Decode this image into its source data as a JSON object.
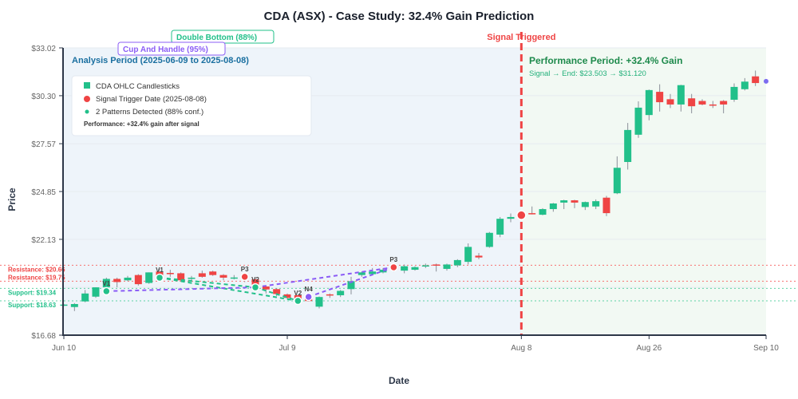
{
  "chart_data": {
    "type": "candlestick",
    "title": "CDA (ASX) - Case Study: 32.4% Gain Prediction",
    "xlabel": "Date",
    "ylabel": "Price",
    "ylim": [
      16.68,
      33.02
    ],
    "y_ticks": [
      "$16.68",
      "$22.13",
      "$24.85",
      "$27.57",
      "$30.30",
      "$33.02"
    ],
    "y_tick_values": [
      16.68,
      22.13,
      24.85,
      27.57,
      30.3,
      33.02
    ],
    "x_ticks": [
      {
        "label": "Jun 10",
        "date": "2025-06-10"
      },
      {
        "label": "Jul 9",
        "date": "2025-07-09"
      },
      {
        "label": "Aug 8",
        "date": "2025-08-08"
      },
      {
        "label": "Aug 26",
        "date": "2025-08-26"
      },
      {
        "label": "Sep 10",
        "date": "2025-09-10"
      }
    ],
    "grid": true,
    "colors": {
      "up": "#22c08a",
      "down": "#ef4444",
      "signal": "#ef4444",
      "pattern_cup": "#8b5cf6",
      "pattern_double": "#22c08a",
      "analysis_bg": "#eef4fa",
      "performance_bg": "#f2f9f3"
    },
    "candles": [
      {
        "date": "2025-06-10",
        "o": 18.38,
        "h": 18.45,
        "l": 18.33,
        "c": 18.42
      },
      {
        "date": "2025-06-11",
        "o": 18.28,
        "h": 18.5,
        "l": 18.05,
        "c": 18.45
      },
      {
        "date": "2025-06-12",
        "o": 18.6,
        "h": 19.25,
        "l": 18.55,
        "c": 19.05
      },
      {
        "date": "2025-06-13",
        "o": 18.87,
        "h": 19.4,
        "l": 18.8,
        "c": 19.4
      },
      {
        "date": "2025-06-16",
        "o": 19.4,
        "h": 19.95,
        "l": 19.35,
        "c": 19.88
      },
      {
        "date": "2025-06-17",
        "o": 19.88,
        "h": 19.95,
        "l": 19.4,
        "c": 19.7
      },
      {
        "date": "2025-06-18",
        "o": 19.8,
        "h": 20.05,
        "l": 19.75,
        "c": 19.95
      },
      {
        "date": "2025-06-19",
        "o": 20.1,
        "h": 20.15,
        "l": 19.5,
        "c": 19.58
      },
      {
        "date": "2025-06-20",
        "o": 19.65,
        "h": 20.25,
        "l": 19.6,
        "c": 20.25
      },
      {
        "date": "2025-06-23",
        "o": 20.3,
        "h": 20.45,
        "l": 19.95,
        "c": 20.1
      },
      {
        "date": "2025-06-24",
        "o": 20.22,
        "h": 20.4,
        "l": 20.0,
        "c": 20.15
      },
      {
        "date": "2025-06-25",
        "o": 20.2,
        "h": 20.25,
        "l": 19.75,
        "c": 19.8
      },
      {
        "date": "2025-06-26",
        "o": 19.9,
        "h": 20.05,
        "l": 19.8,
        "c": 19.95
      },
      {
        "date": "2025-06-27",
        "o": 20.2,
        "h": 20.35,
        "l": 19.95,
        "c": 20.0
      },
      {
        "date": "2025-06-30",
        "o": 20.3,
        "h": 20.35,
        "l": 20.05,
        "c": 20.1
      },
      {
        "date": "2025-07-01",
        "o": 20.1,
        "h": 20.15,
        "l": 19.8,
        "c": 19.95
      },
      {
        "date": "2025-07-02",
        "o": 19.92,
        "h": 20.1,
        "l": 19.85,
        "c": 19.96
      },
      {
        "date": "2025-07-03",
        "o": 20.0,
        "h": 20.05,
        "l": 19.7,
        "c": 19.9
      },
      {
        "date": "2025-07-04",
        "o": 19.86,
        "h": 19.9,
        "l": 19.5,
        "c": 19.55
      },
      {
        "date": "2025-07-07",
        "o": 19.45,
        "h": 19.5,
        "l": 19.05,
        "c": 19.28
      },
      {
        "date": "2025-07-08",
        "o": 19.3,
        "h": 19.35,
        "l": 18.9,
        "c": 19.02
      },
      {
        "date": "2025-07-09",
        "o": 19.0,
        "h": 19.05,
        "l": 18.75,
        "c": 18.8
      },
      {
        "date": "2025-07-10",
        "o": 18.95,
        "h": 19.0,
        "l": 18.65,
        "c": 18.68
      },
      {
        "date": "2025-07-11",
        "o": 18.8,
        "h": 18.85,
        "l": 18.6,
        "c": 18.62
      },
      {
        "date": "2025-07-14",
        "o": 18.3,
        "h": 18.88,
        "l": 18.2,
        "c": 18.85
      },
      {
        "date": "2025-07-15",
        "o": 19.0,
        "h": 19.05,
        "l": 18.8,
        "c": 18.95
      },
      {
        "date": "2025-07-16",
        "o": 18.95,
        "h": 19.25,
        "l": 18.85,
        "c": 19.2
      },
      {
        "date": "2025-07-17",
        "o": 19.3,
        "h": 20.0,
        "l": 19.0,
        "c": 19.75
      },
      {
        "date": "2025-07-18",
        "o": 20.1,
        "h": 20.3,
        "l": 20.0,
        "c": 20.25
      },
      {
        "date": "2025-07-21",
        "o": 20.15,
        "h": 20.5,
        "l": 20.1,
        "c": 20.3
      },
      {
        "date": "2025-07-22",
        "o": 20.25,
        "h": 20.5,
        "l": 20.2,
        "c": 20.4
      },
      {
        "date": "2025-07-23",
        "o": 20.6,
        "h": 20.7,
        "l": 20.3,
        "c": 20.5
      },
      {
        "date": "2025-07-24",
        "o": 20.35,
        "h": 20.7,
        "l": 20.2,
        "c": 20.6
      },
      {
        "date": "2025-07-25",
        "o": 20.4,
        "h": 20.6,
        "l": 20.35,
        "c": 20.55
      },
      {
        "date": "2025-07-28",
        "o": 20.6,
        "h": 20.75,
        "l": 20.5,
        "c": 20.65
      },
      {
        "date": "2025-07-29",
        "o": 20.7,
        "h": 20.75,
        "l": 20.3,
        "c": 20.65
      },
      {
        "date": "2025-07-30",
        "o": 20.45,
        "h": 20.75,
        "l": 20.35,
        "c": 20.7
      },
      {
        "date": "2025-07-31",
        "o": 20.65,
        "h": 21.0,
        "l": 20.55,
        "c": 20.95
      },
      {
        "date": "2025-08-01",
        "o": 20.85,
        "h": 21.9,
        "l": 20.7,
        "c": 21.7
      },
      {
        "date": "2025-08-04",
        "o": 21.2,
        "h": 21.35,
        "l": 21.0,
        "c": 21.1
      },
      {
        "date": "2025-08-05",
        "o": 21.7,
        "h": 22.55,
        "l": 21.65,
        "c": 22.5
      },
      {
        "date": "2025-08-06",
        "o": 22.4,
        "h": 23.4,
        "l": 22.25,
        "c": 23.3
      },
      {
        "date": "2025-08-07",
        "o": 23.3,
        "h": 23.6,
        "l": 23.1,
        "c": 23.4
      },
      {
        "date": "2025-08-08",
        "o": 23.45,
        "h": 23.55,
        "l": 23.4,
        "c": 23.503
      },
      {
        "date": "2025-08-11",
        "o": 23.62,
        "h": 24.0,
        "l": 23.55,
        "c": 23.58
      },
      {
        "date": "2025-08-12",
        "o": 23.53,
        "h": 23.9,
        "l": 23.5,
        "c": 23.85
      },
      {
        "date": "2025-08-13",
        "o": 23.85,
        "h": 24.2,
        "l": 23.7,
        "c": 24.17
      },
      {
        "date": "2025-08-14",
        "o": 24.22,
        "h": 24.38,
        "l": 23.85,
        "c": 24.35
      },
      {
        "date": "2025-08-15",
        "o": 24.35,
        "h": 24.38,
        "l": 23.9,
        "c": 24.22
      },
      {
        "date": "2025-08-18",
        "o": 23.97,
        "h": 24.28,
        "l": 23.8,
        "c": 24.25
      },
      {
        "date": "2025-08-19",
        "o": 24.0,
        "h": 24.4,
        "l": 23.85,
        "c": 24.3
      },
      {
        "date": "2025-08-20",
        "o": 24.5,
        "h": 24.6,
        "l": 23.45,
        "c": 23.62
      },
      {
        "date": "2025-08-21",
        "o": 24.75,
        "h": 26.85,
        "l": 24.7,
        "c": 26.2
      },
      {
        "date": "2025-08-22",
        "o": 26.53,
        "h": 28.75,
        "l": 26.1,
        "c": 28.35
      },
      {
        "date": "2025-08-25",
        "o": 28.08,
        "h": 29.98,
        "l": 27.9,
        "c": 29.62
      },
      {
        "date": "2025-08-26",
        "o": 29.2,
        "h": 30.65,
        "l": 28.9,
        "c": 30.62
      },
      {
        "date": "2025-08-27",
        "o": 30.52,
        "h": 30.95,
        "l": 29.4,
        "c": 29.93
      },
      {
        "date": "2025-08-28",
        "o": 30.1,
        "h": 30.4,
        "l": 29.6,
        "c": 29.8
      },
      {
        "date": "2025-08-29",
        "o": 29.8,
        "h": 30.92,
        "l": 29.4,
        "c": 30.9
      },
      {
        "date": "2025-09-01",
        "o": 30.15,
        "h": 30.4,
        "l": 29.3,
        "c": 29.7
      },
      {
        "date": "2025-09-02",
        "o": 30.0,
        "h": 30.1,
        "l": 29.75,
        "c": 29.8
      },
      {
        "date": "2025-09-03",
        "o": 29.8,
        "h": 30.0,
        "l": 29.6,
        "c": 29.75
      },
      {
        "date": "2025-09-04",
        "o": 30.0,
        "h": 30.05,
        "l": 29.3,
        "c": 29.8
      },
      {
        "date": "2025-09-05",
        "o": 30.07,
        "h": 31.0,
        "l": 29.95,
        "c": 30.8
      },
      {
        "date": "2025-09-08",
        "o": 30.67,
        "h": 31.3,
        "l": 30.6,
        "c": 31.1
      },
      {
        "date": "2025-09-09",
        "o": 31.4,
        "h": 31.73,
        "l": 30.85,
        "c": 31.02
      }
    ],
    "end_point": {
      "date": "2025-09-10",
      "price": 31.12
    },
    "signal": {
      "date": "2025-08-08",
      "price": 23.503,
      "label": "Signal Triggered"
    },
    "levels": [
      {
        "kind": "resistance",
        "label": "Resistance: $20.66",
        "price": 20.66
      },
      {
        "kind": "support",
        "label": "Support: $19.34",
        "price": 19.34
      },
      {
        "kind": "resistance",
        "label": "Resistance: $19.75",
        "price": 19.75
      },
      {
        "kind": "support",
        "label": "Support: $18.63",
        "price": 18.63
      }
    ],
    "patterns": [
      {
        "name": "Double Bottom (88%)",
        "color": "#22c08a",
        "points": [
          {
            "label": "V1",
            "date": "2025-06-16",
            "price": 19.18
          },
          {
            "label": "V1",
            "date": "2025-06-23",
            "price": 19.95
          },
          {
            "label": "V2",
            "date": "2025-07-04",
            "price": 19.4
          },
          {
            "label": "V2",
            "date": "2025-07-10",
            "price": 18.63
          }
        ]
      },
      {
        "name": "Cup And Handle (95%)",
        "color": "#8b5cf6",
        "points": [
          {
            "label": "P3",
            "date": "2025-07-03",
            "price": 20.0
          },
          {
            "label": "N4",
            "date": "2025-07-11",
            "price": 18.86
          },
          {
            "label": "P3",
            "date": "2025-07-23",
            "price": 20.54
          }
        ]
      }
    ],
    "annotations": {
      "analysis_period": "Analysis Period (2025-06-09 to 2025-08-08)",
      "performance_title": "Performance Period: +32.4% Gain",
      "performance_sub": "Signal → End: $23.503 → $31.120"
    },
    "legend": {
      "placement": "top-left",
      "items": [
        "CDA OHLC Candlesticks",
        "Signal Trigger Date (2025-08-08)",
        "2 Patterns Detected (88% conf.)"
      ],
      "note": "Performance: +32.4% gain after signal"
    }
  }
}
